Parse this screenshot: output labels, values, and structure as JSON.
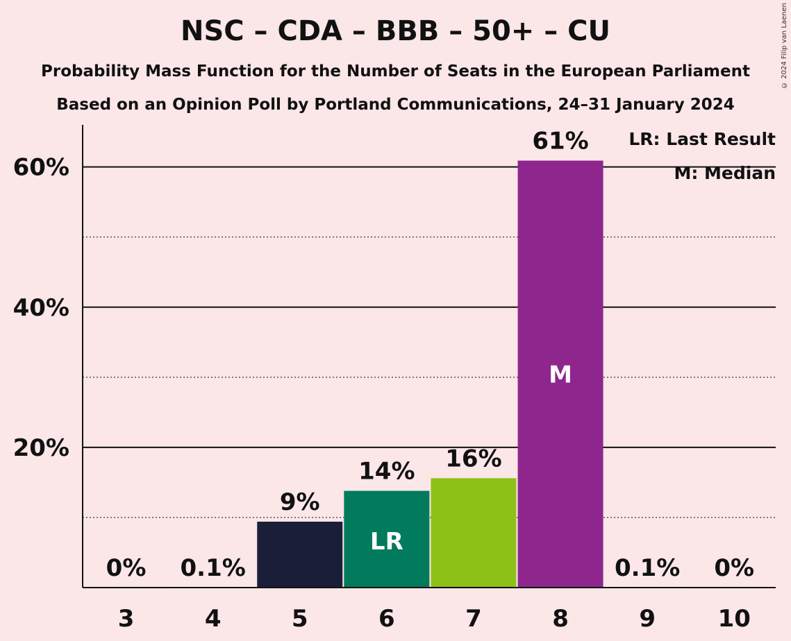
{
  "chart_data": {
    "type": "bar",
    "title": "NSC – CDA – BBB – 50+ – CU",
    "subtitle": "Probability Mass Function for the Number of Seats in the European Parliament",
    "subtitle2": "Based on an Opinion Poll by Portland Communications, 24–31 January 2024",
    "copyright": "© 2024 Filip van Laenen",
    "categories": [
      "3",
      "4",
      "5",
      "6",
      "7",
      "8",
      "9",
      "10"
    ],
    "values": [
      0,
      0.1,
      9.4,
      13.8,
      15.6,
      60.9,
      0.1,
      0
    ],
    "data_labels": [
      "0%",
      "0.1%",
      "9%",
      "14%",
      "16%",
      "61%",
      "0.1%",
      "0%"
    ],
    "bar_colors": [
      "#1a1e38",
      "#1a1e38",
      "#1a1e38",
      "#027a5c",
      "#8dc117",
      "#8e268e",
      "#8e268e",
      "#8e268e"
    ],
    "bar_marks": [
      "",
      "",
      "",
      "LR",
      "",
      "M",
      "",
      ""
    ],
    "ylim": [
      0,
      66
    ],
    "y_ticks": [
      20,
      40,
      60
    ],
    "y_tick_labels": [
      "20%",
      "40%",
      "60%"
    ],
    "minor_gridlines": [
      10,
      30,
      50
    ],
    "legend": {
      "placement": "top-right",
      "last_result": "LR: Last Result",
      "median": "M: Median"
    }
  }
}
